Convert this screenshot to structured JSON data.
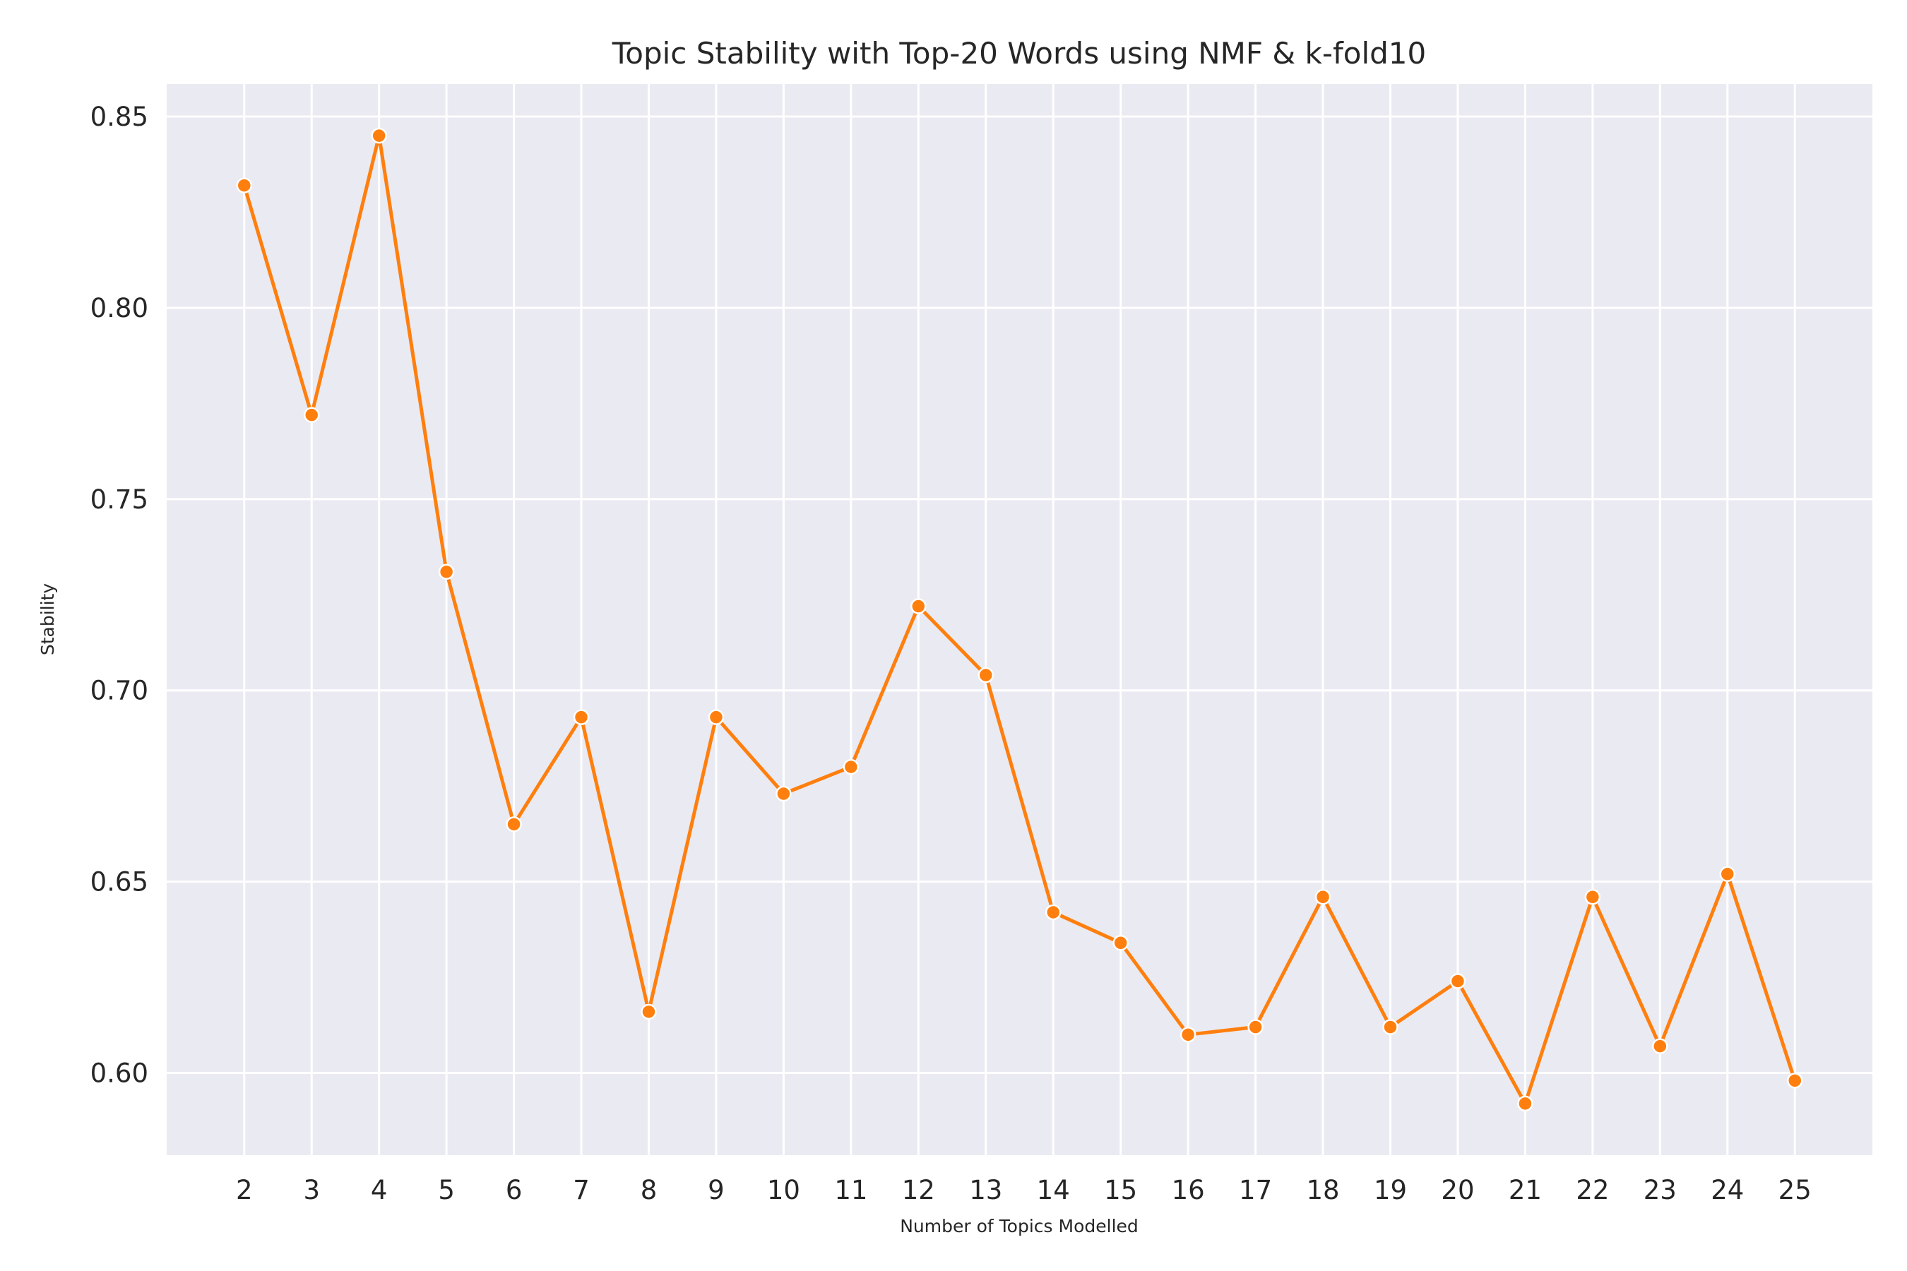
{
  "chart_data": {
    "type": "line",
    "title": "Topic Stability with Top-20 Words using NMF & k-fold10",
    "xlabel": "Number of Topics Modelled",
    "ylabel": "Stability",
    "x": [
      2,
      3,
      4,
      5,
      6,
      7,
      8,
      9,
      10,
      11,
      12,
      13,
      14,
      15,
      16,
      17,
      18,
      19,
      20,
      21,
      22,
      23,
      24,
      25
    ],
    "series": [
      {
        "values": [
          0.832,
          0.772,
          0.845,
          0.731,
          0.665,
          0.693,
          0.616,
          0.693,
          0.673,
          0.68,
          0.722,
          0.704,
          0.642,
          0.634,
          0.61,
          0.612,
          0.646,
          0.612,
          0.624,
          0.592,
          0.646,
          0.607,
          0.652,
          0.598
        ],
        "color": "#ff7f0e"
      }
    ],
    "xlim": [
      0.85,
      26.15
    ],
    "ylim": [
      0.5785,
      0.8585
    ],
    "yticks": [
      "0.60",
      "0.65",
      "0.70",
      "0.75",
      "0.80",
      "0.85"
    ],
    "ytick_values": [
      0.6,
      0.65,
      0.7,
      0.75,
      0.8,
      0.85
    ],
    "grid": true,
    "background": "#eaeaf2",
    "grid_color": "#ffffff"
  }
}
